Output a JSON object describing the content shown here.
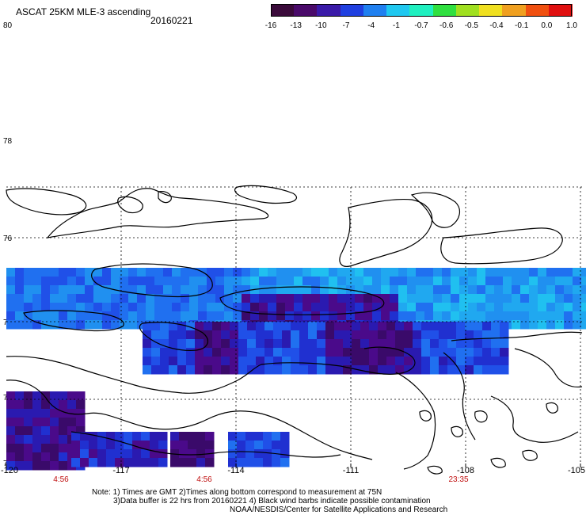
{
  "header": {
    "title": "ASCAT 25KM MLE-3 ascending",
    "date": "20160221"
  },
  "colorbar": {
    "labels": [
      "-16",
      "-13",
      "-10",
      "-7",
      "-4",
      "-1",
      "-0.7",
      "-0.6",
      "-0.5",
      "-0.4",
      "-0.1",
      "0.0",
      "1.0"
    ],
    "colors": [
      "#3a0a3a",
      "#4a0a6a",
      "#3a1aa8",
      "#2040e0",
      "#2080f0",
      "#20c8f0",
      "#20f0c0",
      "#30e040",
      "#a0e020",
      "#f0e020",
      "#f0a020",
      "#f05010",
      "#e01010"
    ]
  },
  "axes": {
    "lat_labels": [
      "80",
      "78",
      "76",
      "74",
      "72",
      "70"
    ],
    "lon_labels": [
      "-120",
      "-117",
      "-114",
      "-111",
      "-108",
      "-105"
    ],
    "time_labels": [
      "4:56",
      "4:56",
      "23:35"
    ]
  },
  "notes": {
    "line1": "Note: 1) Times are GMT 2)Times along bottom correspond to measurement at 75N",
    "line2": "3)Data buffer is 22 hrs from 20160221 4) Black wind barbs indicate possible contamination",
    "line3": "NOAA/NESDIS/Center for Satellite Applications and Research"
  }
}
